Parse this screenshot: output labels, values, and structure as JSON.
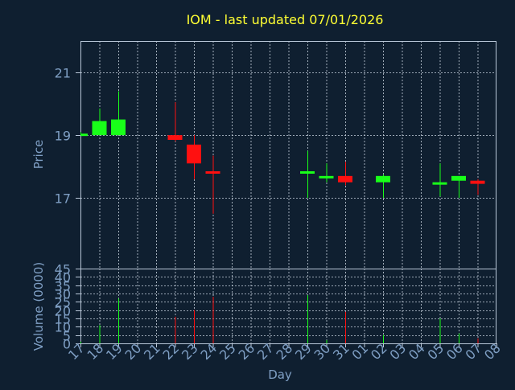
{
  "colors": {
    "background": "#0f1f30",
    "frame": "#b9c7d8",
    "grid": "#c8d2de",
    "title": "#ffff33",
    "axis_text": "#7f9fc4",
    "up": "#19ff19",
    "down": "#ff1010"
  },
  "chart_data": [
    {
      "type": "candlestick",
      "title": "IOM - last updated 07/01/2026",
      "ylabel": "Price",
      "ylim": [
        14.75,
        22
      ],
      "yticks": [
        "21",
        "19",
        "17"
      ],
      "ytick_values": [
        21,
        19,
        17
      ],
      "grid": true,
      "x_categories": [
        "17",
        "18",
        "19",
        "20",
        "21",
        "22",
        "23",
        "24",
        "25",
        "26",
        "27",
        "28",
        "29",
        "30",
        "31",
        "01",
        "02",
        "03",
        "04",
        "05",
        "06",
        "07",
        "08"
      ],
      "candles": [
        {
          "day": "17",
          "open": 19.05,
          "high": 19.1,
          "low": 19.0,
          "close": 19.05
        },
        {
          "day": "18",
          "open": 19.0,
          "high": 19.85,
          "low": 19.0,
          "close": 19.45
        },
        {
          "day": "19",
          "open": 19.0,
          "high": 20.4,
          "low": 19.0,
          "close": 19.5
        },
        {
          "day": "22",
          "open": 19.0,
          "high": 20.05,
          "low": 18.8,
          "close": 18.85
        },
        {
          "day": "23",
          "open": 18.7,
          "high": 19.0,
          "low": 17.6,
          "close": 18.1
        },
        {
          "day": "24",
          "open": 17.85,
          "high": 18.35,
          "low": 16.5,
          "close": 17.8
        },
        {
          "day": "29",
          "open": 17.8,
          "high": 18.5,
          "low": 17.0,
          "close": 17.85
        },
        {
          "day": "30",
          "open": 17.65,
          "high": 18.1,
          "low": 17.5,
          "close": 17.7
        },
        {
          "day": "31",
          "open": 17.7,
          "high": 18.15,
          "low": 17.4,
          "close": 17.5
        },
        {
          "day": "02",
          "open": 17.5,
          "high": 17.75,
          "low": 17.0,
          "close": 17.7
        },
        {
          "day": "05",
          "open": 17.5,
          "high": 18.1,
          "low": 17.05,
          "close": 17.5
        },
        {
          "day": "06",
          "open": 17.55,
          "high": 17.7,
          "low": 17.0,
          "close": 17.7
        },
        {
          "day": "07",
          "open": 17.55,
          "high": 17.6,
          "low": 17.1,
          "close": 17.45
        }
      ]
    },
    {
      "type": "bar",
      "ylabel": "Volume (0000)",
      "xlabel": "Day",
      "ylim": [
        0,
        45
      ],
      "yticks": [
        "45",
        "40",
        "35",
        "30",
        "25",
        "20",
        "15",
        "10",
        "5",
        "0"
      ],
      "ytick_values": [
        45,
        40,
        35,
        30,
        25,
        20,
        15,
        10,
        5,
        0
      ],
      "grid": true,
      "x_categories": [
        "17",
        "18",
        "19",
        "20",
        "21",
        "22",
        "23",
        "24",
        "25",
        "26",
        "27",
        "28",
        "29",
        "30",
        "31",
        "01",
        "02",
        "03",
        "04",
        "05",
        "06",
        "07",
        "08"
      ],
      "bars": [
        {
          "day": "17",
          "value": 1,
          "direction": "up"
        },
        {
          "day": "18",
          "value": 11,
          "direction": "up"
        },
        {
          "day": "19",
          "value": 27,
          "direction": "up"
        },
        {
          "day": "22",
          "value": 16,
          "direction": "down"
        },
        {
          "day": "23",
          "value": 20,
          "direction": "down"
        },
        {
          "day": "24",
          "value": 28,
          "direction": "down"
        },
        {
          "day": "29",
          "value": 29,
          "direction": "up"
        },
        {
          "day": "30",
          "value": 2,
          "direction": "up"
        },
        {
          "day": "31",
          "value": 19,
          "direction": "down"
        },
        {
          "day": "02",
          "value": 5,
          "direction": "up"
        },
        {
          "day": "05",
          "value": 15,
          "direction": "up"
        },
        {
          "day": "06",
          "value": 6,
          "direction": "up"
        },
        {
          "day": "07",
          "value": 3,
          "direction": "down"
        }
      ]
    }
  ]
}
